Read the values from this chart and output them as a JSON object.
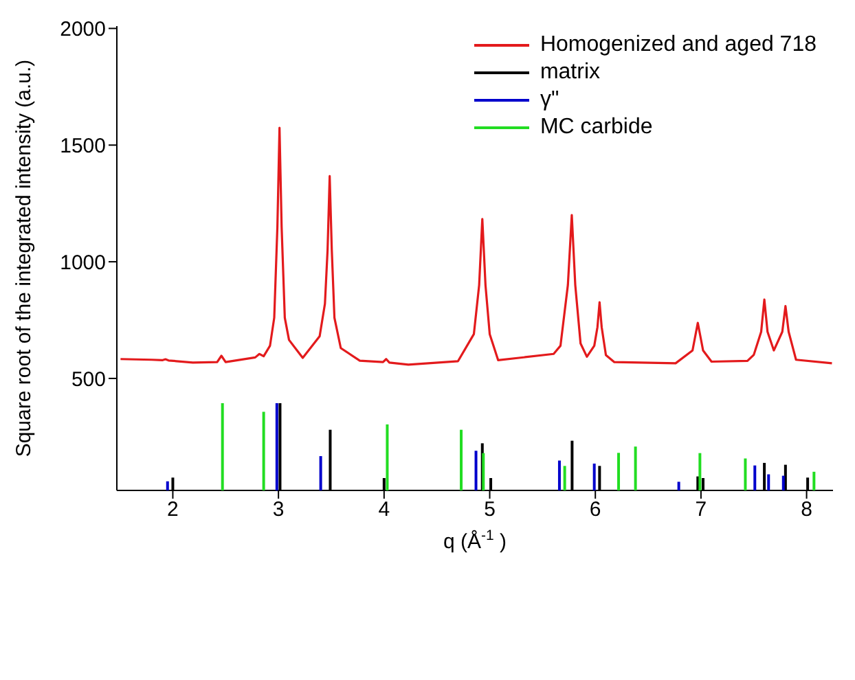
{
  "chart_data": {
    "type": "line",
    "xlabel": "q (Å$^{-1}$)",
    "ylabel": "Square root of the integrated intensity (a.u.)",
    "xlim": [
      1.47,
      8.25
    ],
    "ylim": [
      20,
      2010
    ],
    "xticks": [
      2,
      3,
      4,
      5,
      6,
      7,
      8
    ],
    "yticks": [
      500,
      1000,
      1500,
      2000
    ],
    "grid": false,
    "legend": "top right",
    "marker": "none",
    "line_style": "solid",
    "series": [
      {
        "name": "Homogenized and aged 718",
        "color": "#e31a1c",
        "x": [
          1.505,
          1.8,
          1.9,
          1.93,
          1.96,
          2.19,
          2.42,
          2.46,
          2.5,
          2.78,
          2.82,
          2.86,
          2.92,
          2.96,
          2.99,
          3.01,
          3.03,
          3.06,
          3.1,
          3.23,
          3.39,
          3.44,
          3.465,
          3.485,
          3.505,
          3.53,
          3.59,
          3.77,
          3.99,
          4.02,
          4.05,
          4.23,
          4.7,
          4.85,
          4.9,
          4.93,
          4.96,
          5.0,
          5.08,
          5.605,
          5.67,
          5.74,
          5.777,
          5.81,
          5.86,
          5.92,
          5.99,
          6.02,
          6.04,
          6.06,
          6.1,
          6.18,
          6.76,
          6.92,
          6.97,
          7.02,
          7.1,
          7.44,
          7.5,
          7.57,
          7.6,
          7.63,
          7.69,
          7.77,
          7.8,
          7.83,
          7.9,
          8.24
        ],
        "values": [
          583,
          580,
          578,
          582,
          577,
          568,
          570,
          597,
          570,
          590,
          605,
          595,
          640,
          760,
          1150,
          1574,
          1150,
          760,
          665,
          588,
          681,
          820,
          1050,
          1367,
          1050,
          760,
          630,
          576,
          570,
          583,
          568,
          559,
          574,
          690,
          900,
          1183,
          900,
          690,
          578,
          605,
          640,
          900,
          1200,
          900,
          650,
          593,
          640,
          720,
          826,
          720,
          600,
          570,
          565,
          620,
          738,
          620,
          572,
          575,
          601,
          700,
          838,
          700,
          620,
          700,
          810,
          700,
          580,
          565
        ]
      },
      {
        "name": "matrix",
        "type": "bar",
        "color": "#000000",
        "x": [
          2.0,
          3.015,
          3.49,
          4.0,
          4.93,
          5.01,
          5.78,
          6.04,
          6.97,
          7.02,
          7.6,
          7.8,
          8.01
        ],
        "values": [
          75,
          394,
          280,
          73,
          222,
          73,
          233,
          125,
          80,
          73,
          138,
          130,
          75
        ]
      },
      {
        "name": "γ\"",
        "type": "bar",
        "color": "#0000cc",
        "x": [
          1.95,
          2.985,
          3.4,
          4.87,
          5.66,
          5.99,
          6.79,
          7.51,
          7.64,
          7.78
        ],
        "values": [
          59,
          394,
          167,
          190,
          148,
          135,
          57,
          127,
          89,
          83
        ]
      },
      {
        "name": "MC carbide",
        "type": "bar",
        "color": "#22dd22",
        "x": [
          2.47,
          2.86,
          4.03,
          4.73,
          4.94,
          5.71,
          6.22,
          6.38,
          6.99,
          7.42,
          8.07
        ],
        "values": [
          394,
          357,
          303,
          280,
          180,
          125,
          181,
          208,
          180,
          157,
          100
        ]
      }
    ]
  }
}
